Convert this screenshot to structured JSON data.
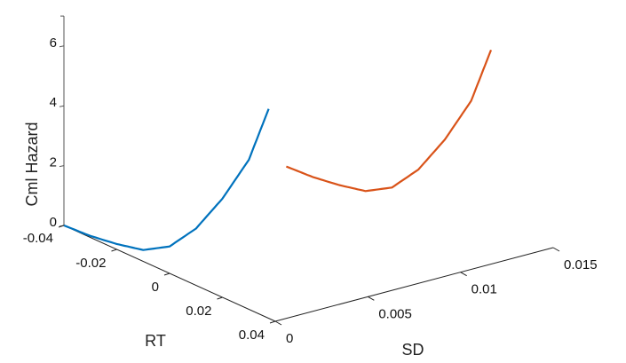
{
  "chart_data": {
    "type": "line3d",
    "title": "",
    "xlabel": "RT",
    "ylabel": "SD",
    "zlabel": "Cml Hazard",
    "xlim": [
      -0.04,
      0.04
    ],
    "ylim": [
      0,
      0.015
    ],
    "zlim": [
      0,
      7
    ],
    "xticks": [
      "-0.04",
      "-0.02",
      "0",
      "0.02",
      "0.04"
    ],
    "yticks": [
      "0",
      "0.005",
      "0.01",
      "0.015"
    ],
    "zticks": [
      "0",
      "2",
      "4",
      "6"
    ],
    "grid": false,
    "series": [
      {
        "color": "#0072BD",
        "sd": 0,
        "rt": [
          -0.04,
          -0.03,
          -0.02,
          -0.01,
          0,
          0.01,
          0.02,
          0.03,
          0.0375
        ],
        "hazard": [
          0,
          0.05,
          0.18,
          0.38,
          0.9,
          1.9,
          3.3,
          5.0,
          7.0
        ]
      },
      {
        "color": "#D95319",
        "sd": 0.012,
        "rt": [
          -0.04,
          -0.03,
          -0.02,
          -0.01,
          0,
          0.01,
          0.02,
          0.03,
          0.0375
        ],
        "hazard": [
          0,
          0.05,
          0.18,
          0.38,
          0.9,
          1.9,
          3.3,
          5.0,
          7.0
        ]
      }
    ]
  }
}
